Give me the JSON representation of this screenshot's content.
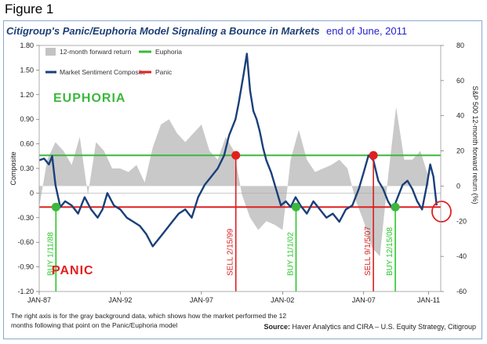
{
  "figure_label": "Figure 1",
  "title": "Citigroup's Panic/Euphoria Model Signaling a Bounce in Markets",
  "title_annotation": "end of June, 2011",
  "footnote": "The right axis is for the gray background data, which shows how the market performed the 12 months following that point on the Panic/Euphoria model",
  "source_label": "Source:",
  "source_text": "Haver Analytics and CIRA – U.S. Equity Strategy, Citigroup",
  "colors": {
    "sentiment": "#1a3f7a",
    "euphoria": "#3cb83c",
    "panic": "#e02020",
    "gray_area": "#c3c3c3",
    "signal_label": "#d82020",
    "buy_label": "#2ac62a",
    "title": "#1d3f78"
  },
  "chart_data": {
    "type": "line",
    "title": "Citigroup's Panic/Euphoria Model Signaling a Bounce in Markets",
    "ylabel_left": "Composite",
    "ylabel_right": "S&P 500 12-month forward return (%)",
    "ylim_left": [
      -1.2,
      1.8
    ],
    "ylim_right": [
      -60,
      80
    ],
    "x_range": [
      1987.0,
      2011.75
    ],
    "left_ticks": [
      "1.80",
      "1.50",
      "1.20",
      "0.90",
      "0.60",
      "0.30",
      "0",
      "-0.30",
      "-0.60",
      "-0.90",
      "-1.20"
    ],
    "right_ticks": [
      "80",
      "60",
      "40",
      "20",
      "0",
      "-20",
      "-40",
      "-60"
    ],
    "x_tick_labels": [
      "JAN-87",
      "JAN-92",
      "JAN-97",
      "JAN-02",
      "JAN-07",
      "JAN-11"
    ],
    "legend": {
      "forward_return": "12-month forward return",
      "sentiment": "Market Sentiment Composite",
      "euphoria": "Euphoria",
      "panic": "Panic"
    },
    "zone_labels": {
      "euphoria": "EUPHORIA",
      "panic": "PANIC"
    },
    "euphoria_level": 0.46,
    "panic_level": -0.17,
    "series": [
      {
        "name": "Market Sentiment Composite",
        "x": [
          1987.0,
          1987.3,
          1987.6,
          1987.8,
          1988.0,
          1988.3,
          1988.6,
          1989.0,
          1989.4,
          1989.8,
          1990.2,
          1990.6,
          1990.9,
          1991.2,
          1991.6,
          1992.0,
          1992.4,
          1992.8,
          1993.2,
          1993.6,
          1994.0,
          1994.4,
          1994.8,
          1995.2,
          1995.6,
          1996.0,
          1996.4,
          1996.8,
          1997.2,
          1997.6,
          1998.0,
          1998.4,
          1998.7,
          1999.1,
          1999.3,
          1999.6,
          1999.8,
          2000.0,
          2000.2,
          2000.4,
          2000.6,
          2000.8,
          2001.0,
          2001.3,
          2001.6,
          2001.9,
          2002.2,
          2002.5,
          2002.8,
          2003.1,
          2003.5,
          2003.9,
          2004.3,
          2004.7,
          2005.1,
          2005.5,
          2005.9,
          2006.3,
          2006.7,
          2007.0,
          2007.3,
          2007.6,
          2007.9,
          2008.2,
          2008.5,
          2008.8,
          2009.1,
          2009.4,
          2009.7,
          2010.0,
          2010.3,
          2010.6,
          2010.9,
          2011.1,
          2011.3,
          2011.5
        ],
        "values": [
          0.4,
          0.42,
          0.35,
          0.45,
          0.1,
          -0.17,
          -0.1,
          -0.15,
          -0.25,
          -0.05,
          -0.2,
          -0.3,
          -0.2,
          0.0,
          -0.15,
          -0.2,
          -0.3,
          -0.35,
          -0.4,
          -0.5,
          -0.65,
          -0.55,
          -0.45,
          -0.35,
          -0.25,
          -0.2,
          -0.3,
          -0.05,
          0.1,
          0.2,
          0.3,
          0.46,
          0.7,
          0.9,
          1.1,
          1.45,
          1.7,
          1.25,
          1.0,
          0.9,
          0.75,
          0.55,
          0.4,
          0.25,
          0.05,
          -0.15,
          -0.1,
          -0.17,
          -0.05,
          -0.15,
          -0.25,
          -0.1,
          -0.2,
          -0.3,
          -0.25,
          -0.35,
          -0.2,
          -0.15,
          0.05,
          0.25,
          0.46,
          0.4,
          0.15,
          0.05,
          -0.1,
          -0.2,
          -0.05,
          0.1,
          0.15,
          0.05,
          -0.1,
          -0.2,
          0.1,
          0.35,
          0.2,
          -0.15
        ]
      },
      {
        "name": "12-month forward return",
        "x": [
          1987.0,
          1987.5,
          1988.0,
          1988.5,
          1989.0,
          1989.5,
          1990.0,
          1990.5,
          1991.0,
          1991.5,
          1992.0,
          1992.5,
          1993.0,
          1993.5,
          1994.0,
          1994.5,
          1995.0,
          1995.5,
          1996.0,
          1996.5,
          1997.0,
          1997.5,
          1998.0,
          1998.5,
          1999.0,
          1999.5,
          2000.0,
          2000.5,
          2001.0,
          2001.5,
          2002.0,
          2002.5,
          2003.0,
          2003.5,
          2004.0,
          2004.5,
          2005.0,
          2005.5,
          2006.0,
          2006.5,
          2007.0,
          2007.5,
          2008.0,
          2008.5,
          2009.0,
          2009.5,
          2010.0,
          2010.5,
          2011.0
        ],
        "values": [
          -12,
          15,
          25,
          20,
          12,
          28,
          -5,
          25,
          20,
          10,
          10,
          8,
          12,
          2,
          22,
          35,
          38,
          30,
          25,
          30,
          35,
          20,
          15,
          28,
          20,
          -5,
          -18,
          -25,
          -20,
          -22,
          -25,
          15,
          32,
          15,
          8,
          10,
          12,
          15,
          10,
          -8,
          -20,
          -35,
          -40,
          5,
          45,
          15,
          15,
          20,
          5
        ]
      }
    ],
    "signals": [
      {
        "label": "BUY 1/11/88",
        "date": 1988.03,
        "level": -0.17,
        "kind": "buy"
      },
      {
        "label": "SELL 2/15/99",
        "date": 1999.12,
        "level": 0.46,
        "kind": "sell"
      },
      {
        "label": "BUY 11/1/02",
        "date": 2002.83,
        "level": -0.17,
        "kind": "buy"
      },
      {
        "label": "SELL 9/1/5/07",
        "date": 2007.6,
        "level": 0.46,
        "kind": "sell"
      },
      {
        "label": "BUY 12/15/08",
        "date": 2008.95,
        "level": -0.17,
        "kind": "buy"
      }
    ]
  }
}
